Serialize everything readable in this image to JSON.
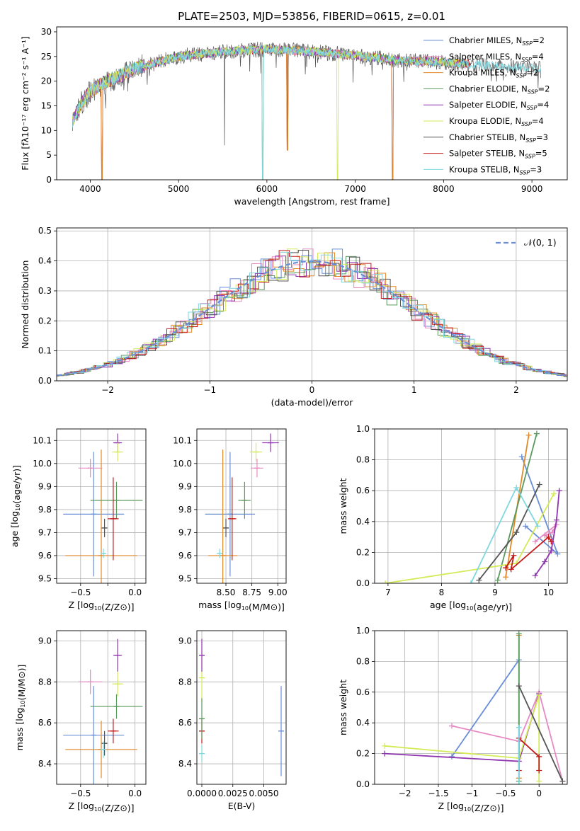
{
  "chart_data": [
    {
      "type": "line",
      "title": "PLATE=2503, MJD=53856, FIBERID=0615, z=0.01",
      "xlabel": "wavelength [Angstrom, rest frame]",
      "ylabel": "Flux [fλ10⁻¹⁷ erg cm⁻² s⁻¹ A⁻¹]",
      "xlim": [
        3620,
        9400
      ],
      "ylim": [
        0,
        31
      ],
      "xticks": [
        4000,
        5000,
        6000,
        7000,
        8000,
        9000
      ],
      "yticks": [
        0,
        5,
        10,
        15,
        20,
        25,
        30
      ],
      "grid": false,
      "legend_position": "top-right",
      "continuum": {
        "x": [
          3800,
          3900,
          4000,
          4200,
          4500,
          5000,
          5500,
          6000,
          6500,
          7000,
          7500,
          8000,
          8500,
          9000,
          9100
        ],
        "y": [
          12,
          15.5,
          18,
          20,
          22.5,
          25,
          26,
          26.5,
          26,
          25.2,
          24.2,
          23.8,
          23.2,
          22.6,
          22.5
        ]
      },
      "dips": [
        {
          "x": 4130,
          "y": 0
        },
        {
          "x": 5520,
          "y": 7
        },
        {
          "x": 5950,
          "y": 0
        },
        {
          "x": 6230,
          "y": 6
        },
        {
          "x": 6800,
          "y": 0
        },
        {
          "x": 7420,
          "y": 0
        }
      ],
      "series": [
        {
          "name": "Chabrier MILES, N",
          "sub": "SSP",
          "n": "=2",
          "color": "#6a8fd6"
        },
        {
          "name": "Salpeter MILES, N",
          "sub": "SSP",
          "n": "=4",
          "color": "#e78ac3"
        },
        {
          "name": "Kroupa MILES, N",
          "sub": "SSP",
          "n": "=2",
          "color": "#e08a28"
        },
        {
          "name": "Chabrier ELODIE, N",
          "sub": "SSP",
          "n": "=2",
          "color": "#5b9a5e"
        },
        {
          "name": "Salpeter ELODIE, N",
          "sub": "SSP",
          "n": "=4",
          "color": "#8f35b0"
        },
        {
          "name": "Kroupa ELODIE, N",
          "sub": "SSP",
          "n": "=4",
          "color": "#d4ea57"
        },
        {
          "name": "Chabrier STELIB, N",
          "sub": "SSP",
          "n": "=3",
          "color": "#555555"
        },
        {
          "name": "Salpeter STELIB, N",
          "sub": "SSP",
          "n": "=5",
          "color": "#c31a1a"
        },
        {
          "name": "Kroupa STELIB, N",
          "sub": "SSP",
          "n": "=3",
          "color": "#7fd8e0"
        }
      ]
    },
    {
      "type": "line",
      "xlabel": "(data-model)/error",
      "ylabel": "Normed distribution",
      "xlim": [
        -2.5,
        2.5
      ],
      "ylim": [
        0,
        0.51
      ],
      "xticks": [
        -2,
        -1,
        0,
        1,
        2
      ],
      "yticks": [
        0.0,
        0.1,
        0.2,
        0.3,
        0.4,
        0.5
      ],
      "grid": true,
      "legend_position": "top-right",
      "legend": "𝒩(0, 1)",
      "gauss_color": "#6a8fd6",
      "histogram_bin_width": 0.1
    },
    {
      "type": "scatter",
      "xlabel": "Z [log10(Z/Z⊙)]",
      "ylabel": "age  [log10(age/yr)]",
      "xlim": [
        -0.72,
        0.1
      ],
      "ylim": [
        9.48,
        10.15
      ],
      "xticks": [
        -0.5,
        -0.25,
        0.0
      ],
      "xticklabels": [
        "−0.5",
        "",
        "0.0"
      ],
      "yticks": [
        9.5,
        9.6,
        9.7,
        9.8,
        9.9,
        10.0,
        10.1
      ],
      "grid": true,
      "points": [
        {
          "x": -0.38,
          "xerr": 0.28,
          "y": 9.78,
          "yerr": 0.27,
          "c": 0
        },
        {
          "x": -0.41,
          "xerr": 0.11,
          "y": 9.98,
          "yerr": 0.04,
          "c": 1
        },
        {
          "x": -0.31,
          "xerr": 0.33,
          "y": 9.6,
          "yerr": 0.46,
          "c": 2
        },
        {
          "x": -0.17,
          "xerr": 0.24,
          "y": 9.84,
          "yerr": 0.08,
          "c": 3
        },
        {
          "x": -0.16,
          "xerr": 0.04,
          "y": 10.09,
          "yerr": 0.04,
          "c": 4
        },
        {
          "x": -0.16,
          "xerr": 0.05,
          "y": 10.05,
          "yerr": 0.04,
          "c": 5
        },
        {
          "x": -0.28,
          "xerr": 0.02,
          "y": 9.72,
          "yerr": 0.04,
          "c": 6
        },
        {
          "x": -0.2,
          "xerr": 0.05,
          "y": 9.76,
          "yerr": 0.18,
          "c": 7
        },
        {
          "x": -0.29,
          "xerr": 0.02,
          "y": 9.61,
          "yerr": 0.02,
          "c": 8
        }
      ]
    },
    {
      "type": "scatter",
      "xlabel": "mass [log10(M/M⊙)]",
      "xlim": [
        8.22,
        9.08
      ],
      "ylim": [
        9.48,
        10.15
      ],
      "xticks": [
        8.5,
        8.75,
        9.0
      ],
      "xticklabels": [
        "8.50",
        "8.75",
        "9.00"
      ],
      "yticks": [
        9.5,
        9.6,
        9.7,
        9.8,
        9.9,
        10.0,
        10.1
      ],
      "grid": true,
      "points": [
        {
          "x": 8.54,
          "xerr": 0.24,
          "y": 9.78,
          "yerr": 0.27,
          "c": 0
        },
        {
          "x": 8.8,
          "xerr": 0.06,
          "y": 9.98,
          "yerr": 0.04,
          "c": 1
        },
        {
          "x": 8.47,
          "xerr": 0.14,
          "y": 9.6,
          "yerr": 0.46,
          "c": 2
        },
        {
          "x": 8.68,
          "xerr": 0.06,
          "y": 9.84,
          "yerr": 0.08,
          "c": 3
        },
        {
          "x": 8.93,
          "xerr": 0.08,
          "y": 10.09,
          "yerr": 0.04,
          "c": 4
        },
        {
          "x": 8.79,
          "xerr": 0.06,
          "y": 10.05,
          "yerr": 0.04,
          "c": 5
        },
        {
          "x": 8.5,
          "xerr": 0.02,
          "y": 9.72,
          "yerr": 0.04,
          "c": 6
        },
        {
          "x": 8.56,
          "xerr": 0.04,
          "y": 9.76,
          "yerr": 0.18,
          "c": 7
        },
        {
          "x": 8.44,
          "xerr": 0.02,
          "y": 9.61,
          "yerr": 0.02,
          "c": 8
        }
      ]
    },
    {
      "type": "line",
      "xlabel": "age  [log10(age/yr)]",
      "ylabel": "mass weight",
      "xlim": [
        6.75,
        10.35
      ],
      "ylim": [
        0,
        1
      ],
      "xticks": [
        7,
        8,
        9,
        10
      ],
      "yticks": [
        0.0,
        0.2,
        0.4,
        0.6,
        0.8,
        1.0
      ],
      "grid": true,
      "series": [
        {
          "c": 0,
          "x": [
            9.5,
            10.17,
            9.57
          ],
          "y": [
            0.82,
            0.19,
            0.37
          ]
        },
        {
          "c": 1,
          "x": [
            9.75,
            10.15,
            10.07,
            9.93
          ],
          "y": [
            0.27,
            0.38,
            0.33,
            0.31
          ]
        },
        {
          "c": 2,
          "x": [
            9.2,
            9.63
          ],
          "y": [
            0.04,
            0.96
          ]
        },
        {
          "c": 3,
          "x": [
            9.05,
            9.78
          ],
          "y": [
            0.02,
            0.97
          ]
        },
        {
          "c": 4,
          "x": [
            9.75,
            9.93,
            10.05,
            10.15,
            10.2
          ],
          "y": [
            0.05,
            0.14,
            0.21,
            0.41,
            0.6
          ]
        },
        {
          "c": 5,
          "x": [
            6.95,
            9.4,
            10.1
          ],
          "y": [
            0.0,
            0.13,
            0.58
          ]
        },
        {
          "c": 6,
          "x": [
            8.7,
            9.4,
            9.83
          ],
          "y": [
            0.02,
            0.33,
            0.64
          ]
        },
        {
          "c": 7,
          "x": [
            9.2,
            9.35,
            9.3,
            10.0,
            10.05
          ],
          "y": [
            0.1,
            0.18,
            0.09,
            0.3,
            0.27
          ]
        },
        {
          "c": 8,
          "x": [
            8.55,
            9.4,
            9.8
          ],
          "y": [
            0.0,
            0.62,
            0.37
          ]
        }
      ]
    },
    {
      "type": "scatter",
      "xlabel": "Z [log10(Z/Z⊙)]",
      "ylabel": "mass [log10(M/M⊙)]",
      "xlim": [
        -0.72,
        0.1
      ],
      "ylim": [
        8.3,
        9.05
      ],
      "xticks": [
        -0.5,
        -0.25,
        0.0
      ],
      "xticklabels": [
        "−0.5",
        "",
        "0.0"
      ],
      "yticks": [
        8.4,
        8.6,
        8.8,
        9.0
      ],
      "grid": true,
      "points": [
        {
          "x": -0.38,
          "xerr": 0.28,
          "y": 8.54,
          "yerr": 0.24,
          "c": 0
        },
        {
          "x": -0.41,
          "xerr": 0.11,
          "y": 8.8,
          "yerr": 0.06,
          "c": 1
        },
        {
          "x": -0.31,
          "xerr": 0.33,
          "y": 8.47,
          "yerr": 0.14,
          "c": 2
        },
        {
          "x": -0.17,
          "xerr": 0.24,
          "y": 8.68,
          "yerr": 0.06,
          "c": 3
        },
        {
          "x": -0.16,
          "xerr": 0.04,
          "y": 8.93,
          "yerr": 0.08,
          "c": 4
        },
        {
          "x": -0.16,
          "xerr": 0.05,
          "y": 8.79,
          "yerr": 0.06,
          "c": 5
        },
        {
          "x": -0.28,
          "xerr": 0.02,
          "y": 8.5,
          "yerr": 0.06,
          "c": 6
        },
        {
          "x": -0.2,
          "xerr": 0.05,
          "y": 8.56,
          "yerr": 0.06,
          "c": 7
        },
        {
          "x": -0.29,
          "xerr": 0.02,
          "y": 8.47,
          "yerr": 0.04,
          "c": 8
        }
      ]
    },
    {
      "type": "scatter",
      "xlabel": "E(B-V)",
      "xlim": [
        -0.0004,
        0.0068
      ],
      "ylim": [
        8.3,
        9.05
      ],
      "xticks": [
        0.0,
        0.0025,
        0.005
      ],
      "xticklabels": [
        "0.0000",
        "0.0025",
        "0.0050"
      ],
      "yticks": [
        8.4,
        8.6,
        8.8,
        9.0
      ],
      "grid": true,
      "points": [
        {
          "x": 0.0,
          "y": 8.82,
          "yerr": 0.12,
          "c": 5
        },
        {
          "x": 0.0,
          "y": 8.93,
          "yerr": 0.08,
          "c": 4
        },
        {
          "x": 0.0,
          "y": 8.56,
          "yerr": 0.06,
          "c": 7
        },
        {
          "x": 0.0,
          "y": 8.62,
          "yerr": 0.1,
          "c": 3
        },
        {
          "x": 0.0,
          "y": 8.45,
          "yerr": 0.04,
          "c": 8
        },
        {
          "x": 0.0064,
          "y": 8.56,
          "yerr": 0.22,
          "c": 0
        }
      ]
    },
    {
      "type": "line",
      "xlabel": "Z [log10(Z/Z⊙)]",
      "ylabel": "mass weight",
      "xlim": [
        -2.45,
        0.42
      ],
      "ylim": [
        0,
        1
      ],
      "xticks": [
        -2.0,
        -1.5,
        -1.0,
        -0.5,
        0.0
      ],
      "yticks": [
        0.0,
        0.2,
        0.4,
        0.6,
        0.8,
        1.0
      ],
      "grid": true,
      "series": [
        {
          "c": 0,
          "x": [
            -1.3,
            -0.3
          ],
          "y": [
            0.18,
            0.81
          ]
        },
        {
          "c": 1,
          "x": [
            -1.3,
            -0.3,
            0.0,
            0.35
          ],
          "y": [
            0.38,
            0.28,
            0.6,
            0.02
          ]
        },
        {
          "c": 2,
          "x": [
            -0.3,
            -0.3
          ],
          "y": [
            0.04,
            0.97
          ]
        },
        {
          "c": 3,
          "x": [
            -0.3,
            -0.3
          ],
          "y": [
            0.02,
            0.98
          ]
        },
        {
          "c": 4,
          "x": [
            -2.3,
            -0.3,
            0.0
          ],
          "y": [
            0.2,
            0.15,
            0.59
          ]
        },
        {
          "c": 5,
          "x": [
            -2.3,
            -0.3,
            0.0,
            0.0
          ],
          "y": [
            0.25,
            0.17,
            0.58,
            0.02
          ]
        },
        {
          "c": 6,
          "x": [
            -0.3,
            0.35
          ],
          "y": [
            0.64,
            0.02
          ]
        },
        {
          "c": 7,
          "x": [
            -0.3,
            -0.3,
            0.0,
            0.0
          ],
          "y": [
            0.09,
            0.3,
            0.18,
            0.09
          ]
        },
        {
          "c": 8,
          "x": [
            -0.3,
            -0.3
          ],
          "y": [
            0.37,
            0.0
          ]
        }
      ]
    }
  ]
}
